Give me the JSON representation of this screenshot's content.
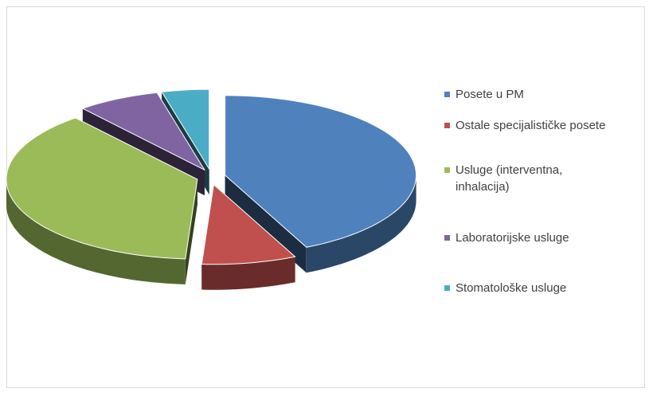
{
  "chart_data": {
    "type": "pie3d",
    "categories": [
      "Posete u PM",
      "Ostale specijalističke posete",
      "Usluge (interventna, inhalacija)",
      "Laboratorijske usluge",
      "Stomatološke usluge"
    ],
    "values": [
      43,
      8,
      38,
      7,
      4
    ],
    "colors": [
      "#4f81bd",
      "#c0504d",
      "#9bbb59",
      "#8064a2",
      "#4bacc6"
    ],
    "legend": "right"
  }
}
